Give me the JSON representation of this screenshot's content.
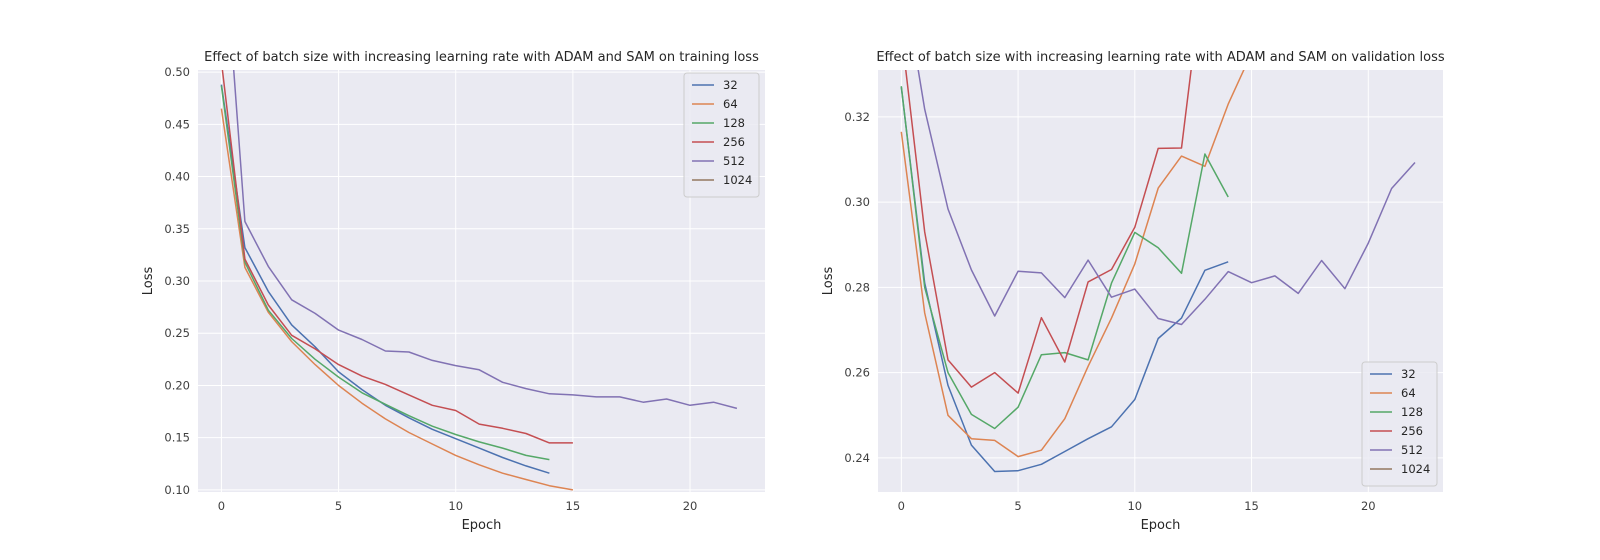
{
  "series_colors": {
    "32": "#4c72b0",
    "64": "#dd8452",
    "128": "#55a868",
    "256": "#c44e52",
    "512": "#8172b3",
    "1024": "#937860"
  },
  "chart_data": [
    {
      "type": "line",
      "title": "Effect of batch size with increasing learning rate with ADAM and SAM on training loss",
      "xlabel": "Epoch",
      "ylabel": "Loss",
      "xlim": [
        -1,
        23.2
      ],
      "ylim": [
        0.098,
        0.502
      ],
      "xticks": [
        0,
        5,
        10,
        15,
        20
      ],
      "xtick_labels": [
        "0",
        "5",
        "10",
        "15",
        "20"
      ],
      "yticks": [
        0.1,
        0.15,
        0.2,
        0.25,
        0.3,
        0.35,
        0.4,
        0.45,
        0.5
      ],
      "ytick_labels": [
        "0.10",
        "0.15",
        "0.20",
        "0.25",
        "0.30",
        "0.35",
        "0.40",
        "0.45",
        "0.50"
      ],
      "legend_position": "top-right",
      "legend": [
        "32",
        "64",
        "128",
        "256",
        "512",
        "1024"
      ],
      "series": [
        {
          "name": "32",
          "x": [
            0,
            1,
            2,
            3,
            4,
            5,
            6,
            7,
            8,
            9,
            10,
            11,
            12,
            13,
            14
          ],
          "values": [
            0.488,
            0.332,
            0.29,
            0.258,
            0.237,
            0.213,
            0.196,
            0.181,
            0.169,
            0.158,
            0.149,
            0.14,
            0.131,
            0.123,
            0.116
          ]
        },
        {
          "name": "64",
          "x": [
            0,
            1,
            2,
            3,
            4,
            5,
            6,
            7,
            8,
            9,
            10,
            11,
            12,
            13,
            14,
            15
          ],
          "values": [
            0.465,
            0.313,
            0.27,
            0.242,
            0.22,
            0.2,
            0.183,
            0.168,
            0.155,
            0.144,
            0.133,
            0.124,
            0.116,
            0.11,
            0.104,
            0.1
          ]
        },
        {
          "name": "128",
          "x": [
            0,
            1,
            2,
            3,
            4,
            5,
            6,
            7,
            8,
            9,
            10,
            11,
            12,
            13,
            14
          ],
          "values": [
            0.487,
            0.318,
            0.272,
            0.245,
            0.225,
            0.208,
            0.193,
            0.182,
            0.171,
            0.161,
            0.153,
            0.146,
            0.14,
            0.133,
            0.129
          ]
        },
        {
          "name": "256",
          "x": [
            0,
            1,
            2,
            3,
            4,
            5,
            6,
            7,
            8,
            9,
            10,
            11,
            12,
            13,
            14,
            15
          ],
          "values": [
            0.51,
            0.321,
            0.277,
            0.248,
            0.235,
            0.22,
            0.209,
            0.201,
            0.191,
            0.181,
            0.176,
            0.163,
            0.159,
            0.154,
            0.145,
            0.145
          ]
        },
        {
          "name": "512",
          "x": [
            0.5,
            1,
            2,
            3,
            4,
            5,
            6,
            7,
            8,
            9,
            10,
            11,
            12,
            13,
            14,
            15,
            16,
            17,
            18,
            19,
            20,
            21,
            22
          ],
          "values": [
            0.51,
            0.357,
            0.314,
            0.282,
            0.269,
            0.253,
            0.244,
            0.233,
            0.232,
            0.224,
            0.219,
            0.215,
            0.203,
            0.197,
            0.192,
            0.191,
            0.189,
            0.189,
            0.184,
            0.187,
            0.181,
            0.184,
            0.178
          ]
        },
        {
          "name": "1024",
          "x": [],
          "values": []
        }
      ]
    },
    {
      "type": "line",
      "title": "Effect of batch size with increasing learning rate with ADAM and SAM on validation loss",
      "xlabel": "Epoch",
      "ylabel": "Loss",
      "xlim": [
        -1,
        23.2
      ],
      "ylim": [
        0.232,
        0.331
      ],
      "xticks": [
        0,
        5,
        10,
        15,
        20
      ],
      "xtick_labels": [
        "0",
        "5",
        "10",
        "15",
        "20"
      ],
      "yticks": [
        0.24,
        0.26,
        0.28,
        0.3,
        0.32
      ],
      "ytick_labels": [
        "0.24",
        "0.26",
        "0.28",
        "0.30",
        "0.32"
      ],
      "legend_position": "bottom-right",
      "legend": [
        "32",
        "64",
        "128",
        "256",
        "512",
        "1024"
      ],
      "series": [
        {
          "name": "32",
          "x": [
            0,
            1,
            2,
            3,
            4,
            5,
            6,
            7,
            8,
            9,
            10,
            11,
            12,
            13,
            14
          ],
          "values": [
            0.327,
            0.281,
            0.257,
            0.243,
            0.2368,
            0.237,
            0.2385,
            0.2415,
            0.2445,
            0.2473,
            0.2537,
            0.268,
            0.2728,
            0.284,
            0.286
          ]
        },
        {
          "name": "64",
          "x": [
            0,
            1,
            2,
            3,
            4,
            5,
            6,
            7,
            8,
            9,
            10,
            11,
            12,
            13,
            14,
            15
          ],
          "values": [
            0.3165,
            0.274,
            0.25,
            0.2445,
            0.2441,
            0.2403,
            0.2418,
            0.2492,
            0.2615,
            0.2728,
            0.2855,
            0.3033,
            0.3108,
            0.3084,
            0.323,
            0.335
          ]
        },
        {
          "name": "128",
          "x": [
            0,
            1,
            2,
            3,
            4,
            5,
            6,
            7,
            8,
            9,
            10,
            11,
            12,
            13,
            14
          ],
          "values": [
            0.3272,
            0.28,
            0.26,
            0.2502,
            0.2469,
            0.2519,
            0.2642,
            0.2647,
            0.263,
            0.281,
            0.2929,
            0.2893,
            0.2833,
            0.3113,
            0.3012
          ]
        },
        {
          "name": "256",
          "x": [
            0,
            1,
            2,
            3,
            4,
            5,
            6,
            7,
            8,
            9,
            10,
            11,
            12,
            12.5
          ],
          "values": [
            0.34,
            0.293,
            0.263,
            0.2566,
            0.26,
            0.2552,
            0.2729,
            0.2625,
            0.2813,
            0.2842,
            0.2941,
            0.3126,
            0.3127,
            0.335
          ]
        },
        {
          "name": "512",
          "x": [
            0.6,
            1,
            2,
            3,
            4,
            5,
            6,
            7,
            8,
            9,
            10,
            11,
            12,
            13,
            14,
            15,
            16,
            17,
            18,
            19,
            20,
            21,
            22
          ],
          "values": [
            0.335,
            0.3218,
            0.2984,
            0.2841,
            0.2733,
            0.2838,
            0.2834,
            0.2776,
            0.2864,
            0.2777,
            0.2796,
            0.2727,
            0.2713,
            0.2772,
            0.2837,
            0.2811,
            0.2827,
            0.2786,
            0.2863,
            0.2797,
            0.2904,
            0.3032,
            0.3093
          ]
        },
        {
          "name": "1024",
          "x": [],
          "values": []
        }
      ]
    }
  ]
}
